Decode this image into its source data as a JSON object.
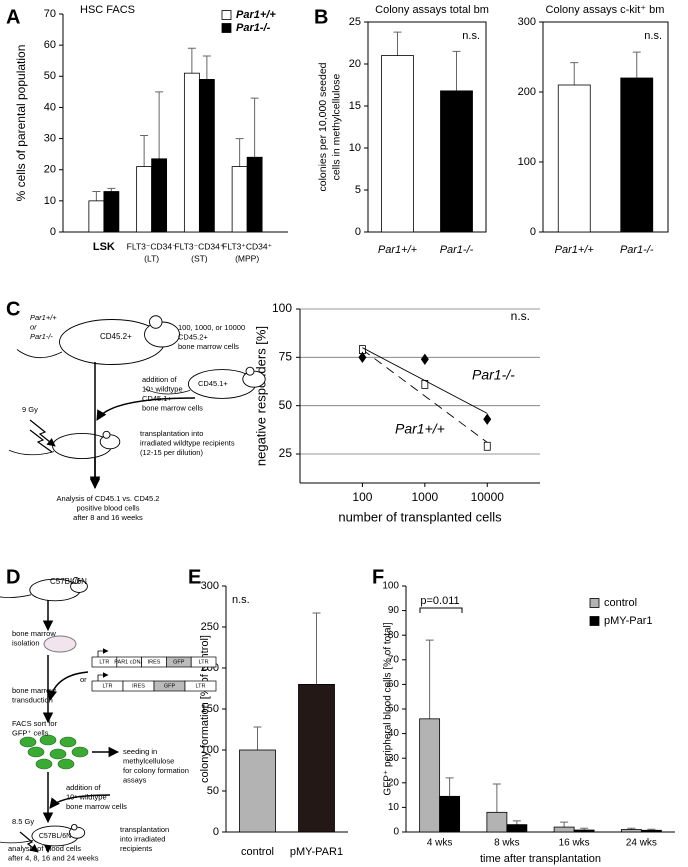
{
  "panel_labels": [
    "A",
    "B",
    "C",
    "D",
    "E",
    "F"
  ],
  "chart_data": [
    {
      "type": "bar",
      "title": "HSC FACS",
      "y_label": "% cells of parental population",
      "categories": [
        [
          "LSK"
        ],
        [
          "FLT3⁻CD34⁻",
          "(LT)"
        ],
        [
          "FLT3⁻CD34⁺",
          "(ST)"
        ],
        [
          "FLT3⁺CD34⁺",
          "(MPP)"
        ]
      ],
      "series": [
        {
          "name": "Par1+/+",
          "color": "#ffffff",
          "values": [
            10,
            21,
            51,
            21
          ],
          "errors": [
            3,
            10,
            8,
            9
          ]
        },
        {
          "name": "Par1-/-",
          "color": "#000000",
          "values": [
            13,
            23.5,
            49,
            24
          ],
          "errors": [
            1,
            21.5,
            7.5,
            19
          ]
        }
      ],
      "ylim": [
        0,
        70
      ],
      "yticks": [
        0,
        10,
        20,
        30,
        40,
        50,
        60,
        70
      ]
    },
    {
      "type": "bar",
      "title": "Colony assays total bm",
      "y_label": [
        "colonies per 10,000 seeded",
        "cells in methylcellulose"
      ],
      "annotation": "n.s.",
      "categories": [
        "Par1+/+",
        "Par1-/-"
      ],
      "values": [
        21,
        16.8
      ],
      "errors": [
        2.8,
        4.7
      ],
      "colors": [
        "#ffffff",
        "#000000"
      ],
      "ylim": [
        0,
        25
      ],
      "yticks": [
        0,
        5,
        10,
        15,
        20,
        25
      ]
    },
    {
      "type": "bar",
      "title": "Colony assays c-kit⁺ bm",
      "annotation": "n.s.",
      "categories": [
        "Par1+/+",
        "Par1-/-"
      ],
      "values": [
        210,
        220
      ],
      "errors": [
        32,
        37
      ],
      "colors": [
        "#ffffff",
        "#000000"
      ],
      "ylim": [
        0,
        300
      ],
      "yticks": [
        0,
        100,
        200,
        300
      ]
    },
    {
      "type": "scatter",
      "y_label": "negative responders [%]",
      "x_label": "number of transplanted cells",
      "annotation": "n.s.",
      "log_x": true,
      "xlim": [
        10,
        70000
      ],
      "xticks": [
        100,
        1000,
        10000
      ],
      "ylim": [
        10,
        100
      ],
      "yticks": [
        25,
        50,
        75,
        100
      ],
      "grid": true,
      "series": [
        {
          "name": "Par1+/+",
          "marker": "square",
          "color": "#ffffff",
          "x": [
            100,
            1000,
            10000
          ],
          "values": [
            79,
            61,
            29
          ],
          "fit": {
            "x": [
              100,
              10000
            ],
            "values": [
              79,
              31
            ],
            "line_style": "dashed"
          }
        },
        {
          "name": "Par1-/-",
          "marker": "diamond",
          "color": "#000000",
          "x": [
            100,
            1000,
            10000
          ],
          "values": [
            75,
            74,
            43
          ],
          "fit": {
            "x": [
              100,
              10000
            ],
            "values": [
              80,
              46
            ],
            "line_style": "solid"
          }
        }
      ]
    },
    {
      "type": "bar",
      "y_label": "colony formation [% of control]",
      "annotation": "n.s.",
      "categories": [
        "control",
        "pMY-PAR1"
      ],
      "values": [
        100,
        180
      ],
      "errors": [
        28,
        87
      ],
      "colors": [
        "#b3b3b3",
        "#231815"
      ],
      "ylim": [
        0,
        300
      ],
      "yticks": [
        0,
        50,
        100,
        150,
        200,
        250,
        300
      ]
    },
    {
      "type": "bar",
      "y_label": "GFP⁺ peripheral blood cells [% of total]",
      "x_label": "time after transplantation",
      "annotation": "p=0.011",
      "categories": [
        "4 wks",
        "8 wks",
        "16 wks",
        "24 wks"
      ],
      "series": [
        {
          "name": "control",
          "color": "#b3b3b3",
          "values": [
            46,
            8,
            2,
            1
          ],
          "errors": [
            32,
            11.5,
            2,
            0.5
          ]
        },
        {
          "name": "pMY-Par1",
          "color": "#000000",
          "values": [
            14.5,
            3,
            0.8,
            0.7
          ],
          "errors": [
            7.5,
            1.5,
            0.7,
            0.4
          ]
        }
      ],
      "ylim": [
        0,
        100
      ],
      "yticks": [
        0,
        10,
        20,
        30,
        40,
        50,
        60,
        70,
        80,
        90,
        100
      ]
    }
  ],
  "diagram_c": {
    "texts": [
      [
        "Par1+/+",
        "or",
        "Par1-/-"
      ],
      [
        "CD45.2+"
      ],
      [
        "100, 1000, or 10000",
        "CD45.2+",
        "bone marrow cells"
      ],
      [
        "addition of",
        "10⁵ wildtype",
        "CD45.1+",
        "bone marrow cells"
      ],
      [
        "CD45.1+"
      ],
      [
        "9 Gy"
      ],
      [
        "transplantation into",
        "irradiated wildtype recipients",
        "(12-15 per dilution)"
      ],
      [
        "Analysis of CD45.1 vs. CD45.2",
        "positive blood cells",
        "after 8 and 16 weeks"
      ]
    ]
  },
  "diagram_d": {
    "texts": [
      [
        "C57BL/6N"
      ],
      [
        "bone marrow",
        "isolation"
      ],
      [
        "bone marrow",
        "transduction"
      ],
      [
        "or"
      ],
      [
        "FACS sort for",
        "GFP⁺ cells"
      ],
      [
        "seeding in",
        "methylcellulose",
        "for colony formation",
        "assays"
      ],
      [
        "addition of",
        "10⁵ wildtype",
        "bone marrow cells"
      ],
      [
        "8.5 Gy"
      ],
      [
        "C57BL/6N"
      ],
      [
        "transplantation",
        "into irradiated",
        "recipients"
      ],
      [
        "analysis of blood cells",
        "after 4, 8, 16 and 24 weeks"
      ]
    ],
    "vectors": [
      [
        "LTR",
        "PAR1 cDNA",
        "IRES",
        "GFP",
        "LTR"
      ],
      [
        "LTR",
        "IRES",
        "GFP",
        "LTR"
      ]
    ]
  }
}
